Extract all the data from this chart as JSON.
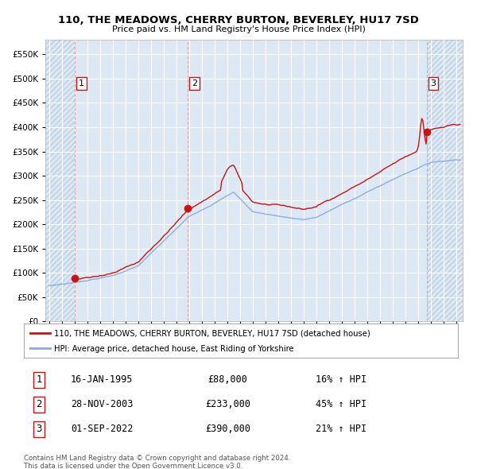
{
  "title": "110, THE MEADOWS, CHERRY BURTON, BEVERLEY, HU17 7SD",
  "subtitle": "Price paid vs. HM Land Registry's House Price Index (HPI)",
  "legend_label_red": "110, THE MEADOWS, CHERRY BURTON, BEVERLEY, HU17 7SD (detached house)",
  "legend_label_blue": "HPI: Average price, detached house, East Riding of Yorkshire",
  "transactions": [
    {
      "num": 1,
      "date": "16-JAN-1995",
      "price": 88000,
      "hpi_pct": "16% ↑ HPI",
      "date_dec": 1995.04
    },
    {
      "num": 2,
      "date": "28-NOV-2003",
      "price": 233000,
      "hpi_pct": "45% ↑ HPI",
      "date_dec": 2003.91
    },
    {
      "num": 3,
      "date": "01-SEP-2022",
      "price": 390000,
      "hpi_pct": "21% ↑ HPI",
      "date_dec": 2022.67
    }
  ],
  "footer1": "Contains HM Land Registry data © Crown copyright and database right 2024.",
  "footer2": "This data is licensed under the Open Government Licence v3.0.",
  "ylim_max": 580000,
  "yticks": [
    0,
    50000,
    100000,
    150000,
    200000,
    250000,
    300000,
    350000,
    400000,
    450000,
    500000,
    550000
  ],
  "xlim_start": 1992.7,
  "xlim_end": 2025.5,
  "bg_color": "#dce9f5",
  "hatch_color": "#b8cfe0",
  "grid_color": "#ffffff",
  "red_line_color": "#cc1111",
  "blue_line_color": "#88aadd",
  "red_dot_color": "#cc1111",
  "vline_color": "#ddaaaa",
  "box_border_color": "#cc1111",
  "white": "#ffffff"
}
